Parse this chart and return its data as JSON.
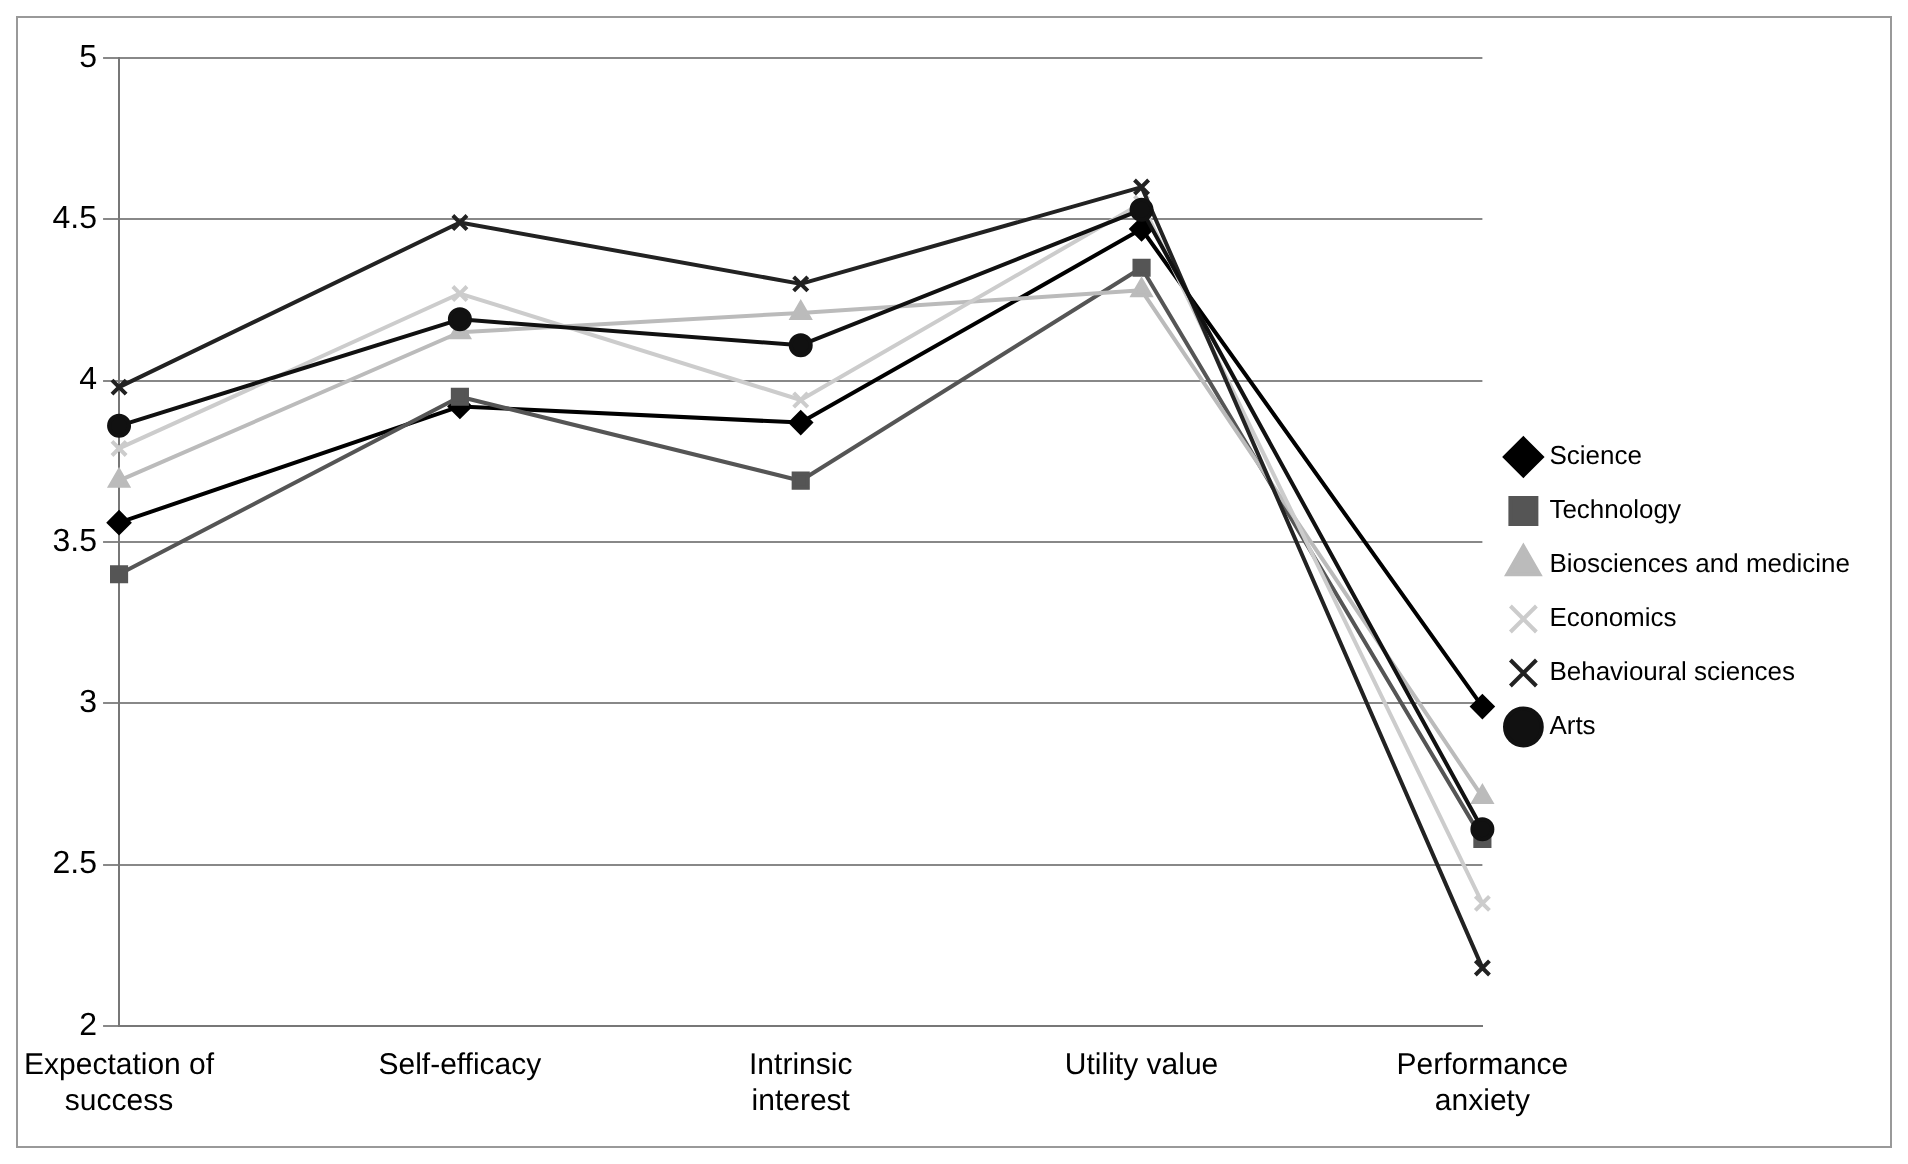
{
  "chart_data": {
    "type": "line",
    "categories": [
      "Expectation of success",
      "Self-efficacy",
      "Intrinsic interest",
      "Utility value",
      "Performance anxiety"
    ],
    "series": [
      {
        "name": "Science",
        "color": "#000000",
        "marker": "diamond",
        "values": [
          3.56,
          3.92,
          3.87,
          4.47,
          2.99
        ]
      },
      {
        "name": "Technology",
        "color": "#555555",
        "marker": "square",
        "values": [
          3.4,
          3.95,
          3.69,
          4.35,
          2.58
        ]
      },
      {
        "name": "Biosciences and medicine",
        "color": "#bbbbbb",
        "marker": "triangle",
        "values": [
          3.69,
          4.15,
          4.21,
          4.28,
          2.71
        ]
      },
      {
        "name": "Economics",
        "color": "#cccccc",
        "marker": "cross",
        "values": [
          3.79,
          4.27,
          3.94,
          4.55,
          2.38
        ]
      },
      {
        "name": "Behavioural sciences",
        "color": "#222222",
        "marker": "cross",
        "values": [
          3.98,
          4.49,
          4.3,
          4.6,
          2.18
        ]
      },
      {
        "name": "Arts",
        "color": "#111111",
        "marker": "circle",
        "values": [
          3.86,
          4.19,
          4.11,
          4.53,
          2.61
        ]
      }
    ],
    "ylim": [
      2,
      5
    ],
    "yticks": [
      2,
      2.5,
      3,
      3.5,
      4,
      4.5,
      5
    ],
    "grid": "y",
    "legend": "right"
  }
}
